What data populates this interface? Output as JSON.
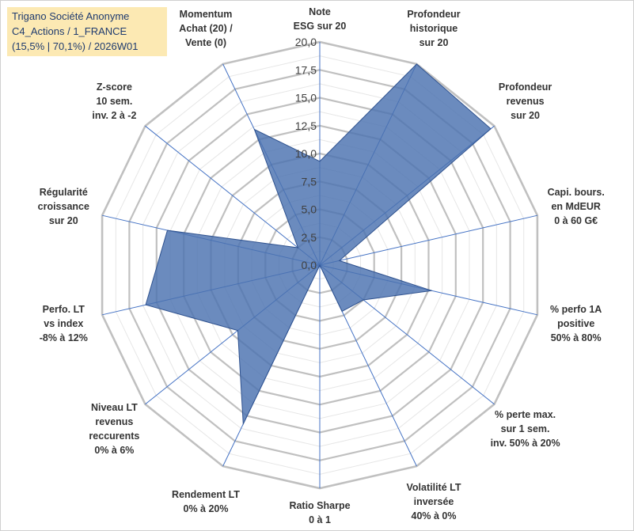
{
  "title": {
    "line1": "Trigano Société Anonyme",
    "line2": "C4_Actions / 1_FRANCE",
    "line3": "(15,5% | 70,1%) / 2026W01"
  },
  "colors": {
    "grid": "#c0c0c0",
    "spoke": "#4472c4",
    "fill": "#4a72b0",
    "stroke": "#2f528f"
  },
  "chart_data": {
    "type": "radar",
    "range": [
      0,
      20
    ],
    "tick_step": 2.5,
    "tick_labels": [
      "0,0",
      "2,5",
      "5,0",
      "7,5",
      "10,0",
      "12,5",
      "15,0",
      "17,5",
      "20,0"
    ],
    "axes": [
      {
        "label": [
          "Note",
          "ESG sur 20"
        ],
        "value": 9.3
      },
      {
        "label": [
          "Profondeur",
          "historique",
          "sur 20"
        ],
        "value": 20.0
      },
      {
        "label": [
          "Profondeur",
          "revenus",
          "sur 20"
        ],
        "value": 19.6
      },
      {
        "label": [
          "Capi. bours.",
          "en MdEUR",
          "0 à 60 G€"
        ],
        "value": 1.8
      },
      {
        "label": [
          "% perfo 1A",
          "positive",
          "50% à 80%"
        ],
        "value": 10.3
      },
      {
        "label": [
          "% perte max.",
          "sur 1 sem.",
          "inv. 50% à 20%"
        ],
        "value": 5.0
      },
      {
        "label": [
          "Volatilité LT",
          "inversée",
          "40% à 0%"
        ],
        "value": 4.6
      },
      {
        "label": [
          "Ratio Sharpe",
          "0 à 1"
        ],
        "value": 0.0
      },
      {
        "label": [
          "Rendement LT",
          "0% à 20%"
        ],
        "value": 15.8
      },
      {
        "label": [
          "Niveau LT",
          "revenus",
          "reccurents",
          "0% à 6%"
        ],
        "value": 9.4
      },
      {
        "label": [
          "Perfo. LT",
          "vs index",
          "-8% à 12%"
        ],
        "value": 16.0
      },
      {
        "label": [
          "Régularité",
          "croissance",
          "sur 20"
        ],
        "value": 14.0
      },
      {
        "label": [
          "Z-score",
          "10 sem.",
          "inv. 2 à -2"
        ],
        "value": 2.5
      },
      {
        "label": [
          "Momentum",
          "Achat (20) /",
          "Vente (0)"
        ],
        "value": 13.5
      }
    ]
  }
}
